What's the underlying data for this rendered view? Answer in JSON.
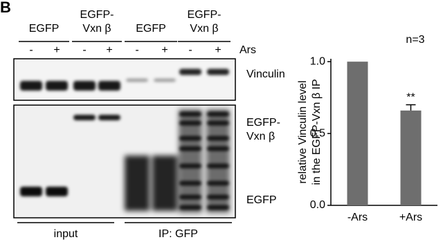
{
  "panel_label": "B",
  "blot": {
    "lane_groups": [
      [
        "EGFP"
      ],
      [
        "EGFP-",
        "Vxn β"
      ],
      [
        "EGFP"
      ],
      [
        "EGFP-",
        "Vxn β"
      ]
    ],
    "treatments": [
      "-",
      "+",
      "-",
      "+",
      "-",
      "+",
      "-",
      "+"
    ],
    "treatment_label": "Ars",
    "band_labels": [
      [
        "Vinculin"
      ],
      [
        "EGFP-",
        "Vxn β"
      ],
      [
        "EGFP"
      ]
    ],
    "sections": [
      "input",
      "IP: GFP"
    ]
  },
  "chart_data": {
    "type": "bar",
    "title": "n=3",
    "ylabel": [
      "relative Vinculin level",
      "in the EGFP-Vxn β IP"
    ],
    "categories": [
      "-Ars",
      "+Ars"
    ],
    "values": [
      1.0,
      0.66
    ],
    "errors": [
      null,
      0.04
    ],
    "significance": [
      null,
      "**"
    ],
    "color": "#6e6e6e",
    "ylim": [
      0,
      1.02
    ],
    "yticks": [
      {
        "value": 0,
        "label": "0.0"
      },
      0.5,
      {
        "value": 1,
        "label": "1.0"
      }
    ]
  }
}
